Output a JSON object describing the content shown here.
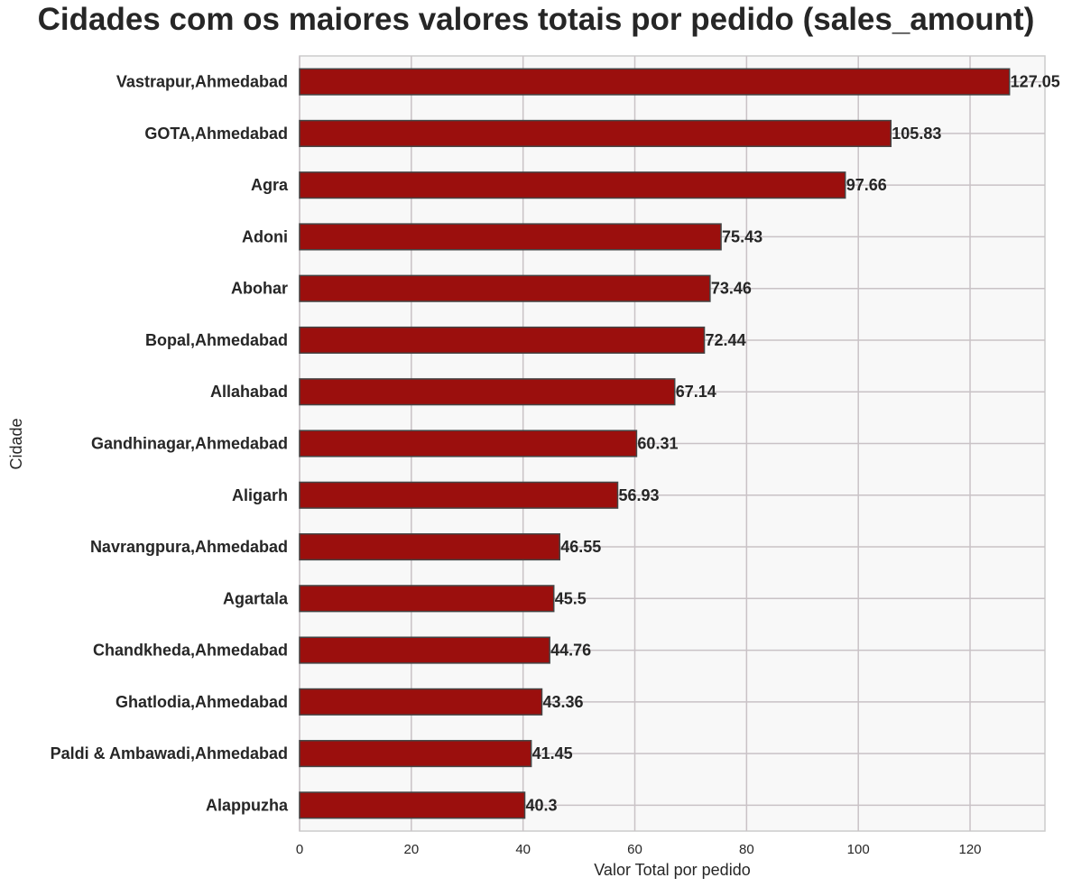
{
  "chart_data": {
    "type": "bar",
    "orientation": "horizontal",
    "title": "Cidades com os maiores valores totais por pedido (sales_amount)",
    "xlabel": "Valor Total por pedido",
    "ylabel": "Cidade",
    "xlim": [
      0,
      133.4
    ],
    "xticks": [
      0,
      20,
      40,
      60,
      80,
      100,
      120
    ],
    "grid": true,
    "bar_color": "#9b0f0d",
    "categories": [
      "Vastrapur,Ahmedabad",
      "GOTA,Ahmedabad",
      "Agra",
      "Adoni",
      "Abohar",
      "Bopal,Ahmedabad",
      "Allahabad",
      "Gandhinagar,Ahmedabad",
      "Aligarh",
      "Navrangpura,Ahmedabad",
      "Agartala",
      "Chandkheda,Ahmedabad",
      "Ghatlodia,Ahmedabad",
      "Paldi & Ambawadi,Ahmedabad",
      "Alappuzha"
    ],
    "values": [
      127.05,
      105.83,
      97.66,
      75.43,
      73.46,
      72.44,
      67.14,
      60.31,
      56.93,
      46.55,
      45.5,
      44.76,
      43.36,
      41.45,
      40.3
    ],
    "value_labels": [
      "127.05",
      "105.83",
      "97.66",
      "75.43",
      "73.46",
      "72.44",
      "67.14",
      "60.31",
      "56.93",
      "46.55",
      "45.5",
      "44.76",
      "43.36",
      "41.45",
      "40.3"
    ]
  }
}
